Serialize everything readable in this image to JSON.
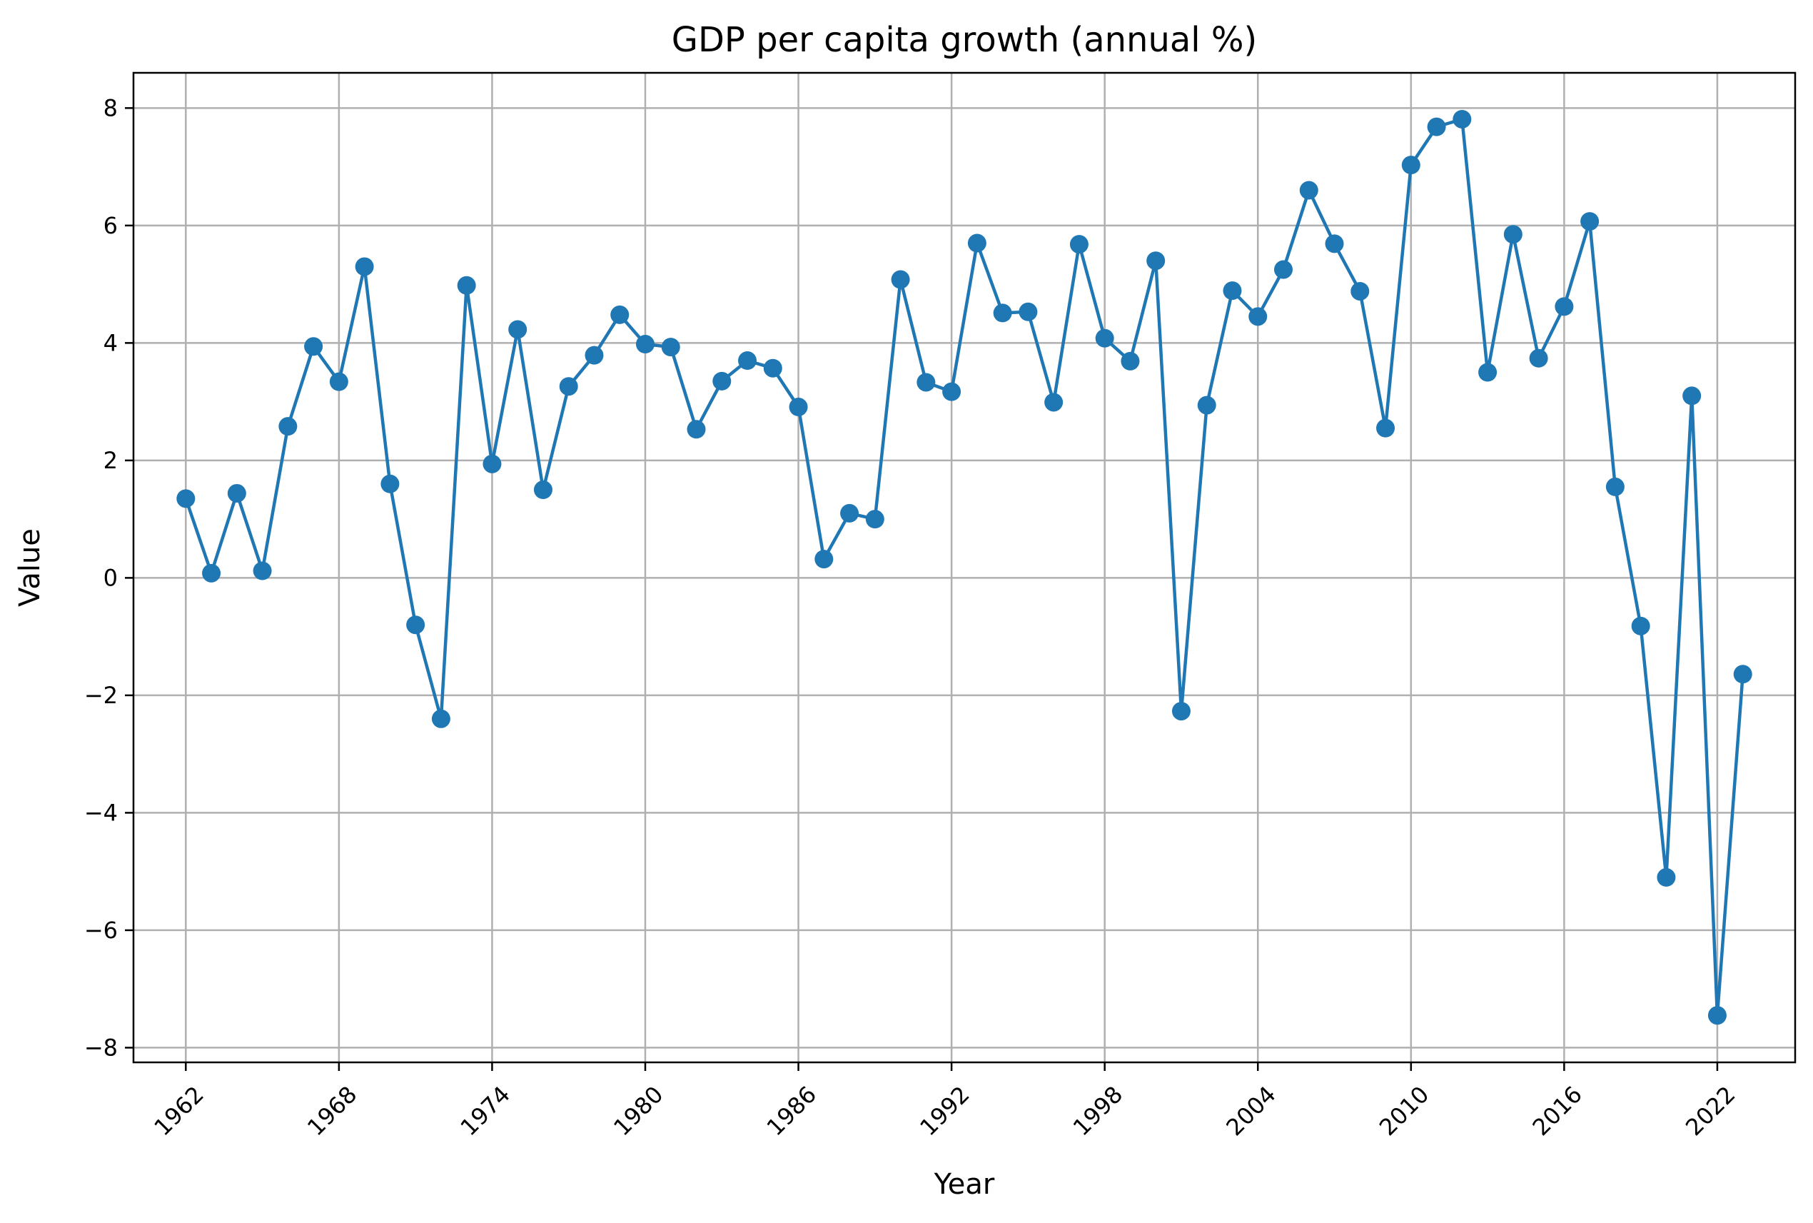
{
  "chart_data": {
    "type": "line",
    "title": "GDP per capita growth (annual %)",
    "xlabel": "Year",
    "ylabel": "Value",
    "xlim": [
      1959.95,
      2025.05
    ],
    "ylim": [
      -8.25,
      8.6
    ],
    "grid": true,
    "legend": "none",
    "xticks": [
      1962,
      1968,
      1974,
      1980,
      1986,
      1992,
      1998,
      2004,
      2010,
      2016,
      2022
    ],
    "yticks": [
      -8,
      -6,
      -4,
      -2,
      0,
      2,
      4,
      6,
      8
    ],
    "colors": {
      "series": "#1f77b4"
    },
    "series": [
      {
        "x": [
          1962,
          1963,
          1964,
          1965,
          1966,
          1967,
          1968,
          1969,
          1970,
          1971,
          1972,
          1973,
          1974,
          1975,
          1976,
          1977,
          1978,
          1979,
          1980,
          1981,
          1982,
          1983,
          1984,
          1985,
          1986,
          1987,
          1988,
          1989,
          1990,
          1991,
          1992,
          1993,
          1994,
          1995,
          1996,
          1997,
          1998,
          1999,
          2000,
          2001,
          2002,
          2003,
          2004,
          2005,
          2006,
          2007,
          2008,
          2009,
          2010,
          2011,
          2012,
          2013,
          2014,
          2015,
          2016,
          2017,
          2018,
          2019,
          2020,
          2021,
          2022,
          2023
        ],
        "values": [
          1.35,
          0.08,
          1.44,
          0.12,
          2.58,
          3.94,
          3.34,
          5.3,
          1.6,
          -0.8,
          -2.4,
          4.98,
          1.94,
          4.23,
          1.5,
          3.26,
          3.79,
          4.48,
          3.98,
          3.93,
          2.53,
          3.35,
          3.7,
          3.57,
          2.91,
          0.32,
          1.1,
          1.0,
          5.08,
          3.33,
          3.17,
          5.7,
          4.51,
          4.53,
          2.99,
          5.68,
          4.08,
          3.69,
          5.4,
          -2.27,
          2.94,
          4.89,
          4.45,
          5.25,
          6.6,
          5.69,
          4.88,
          2.55,
          7.03,
          7.68,
          7.81,
          3.5,
          5.85,
          3.74,
          4.62,
          6.07,
          1.55,
          -0.82,
          -5.1,
          3.1,
          -7.45,
          -1.64
        ]
      }
    ]
  }
}
